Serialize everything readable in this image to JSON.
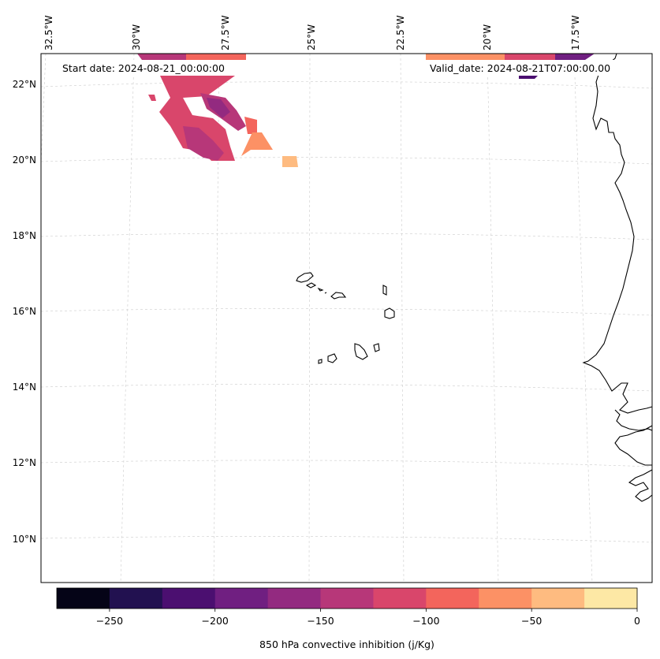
{
  "map": {
    "start_label": "Start date: 2024-08-21_00:00:00",
    "valid_label": "Valid_date: 2024-08-21T07:00:00.00",
    "lon_labels": [
      "32.5°W",
      "30°W",
      "27.5°W",
      "25°W",
      "22.5°W",
      "20°W",
      "17.5°W"
    ],
    "lat_labels": [
      "22°N",
      "20°N",
      "18°N",
      "16°N",
      "14°N",
      "12°N",
      "10°N"
    ],
    "gridlines": true
  },
  "colorbar": {
    "label": "850 hPa convective inhibition (j/Kg)",
    "tick_labels": [
      "−250",
      "−200",
      "−150",
      "−100",
      "−50",
      "0"
    ],
    "ticks": [
      -250,
      -200,
      -150,
      -100,
      -50,
      0
    ],
    "min": -275,
    "max": 0,
    "bins": [
      {
        "from": -275,
        "to": -250,
        "color": "#050417"
      },
      {
        "from": -250,
        "to": -225,
        "color": "#221150"
      },
      {
        "from": -225,
        "to": -200,
        "color": "#4b0f70"
      },
      {
        "from": -200,
        "to": -175,
        "color": "#701f81"
      },
      {
        "from": -175,
        "to": -150,
        "color": "#932a80"
      },
      {
        "from": -150,
        "to": -125,
        "color": "#b73779"
      },
      {
        "from": -125,
        "to": -100,
        "color": "#d9466b"
      },
      {
        "from": -100,
        "to": -75,
        "color": "#f3655c"
      },
      {
        "from": -75,
        "to": -50,
        "color": "#fc9165"
      },
      {
        "from": -50,
        "to": -25,
        "color": "#febb80"
      },
      {
        "from": -25,
        "to": 0,
        "color": "#fde8a5"
      }
    ]
  }
}
